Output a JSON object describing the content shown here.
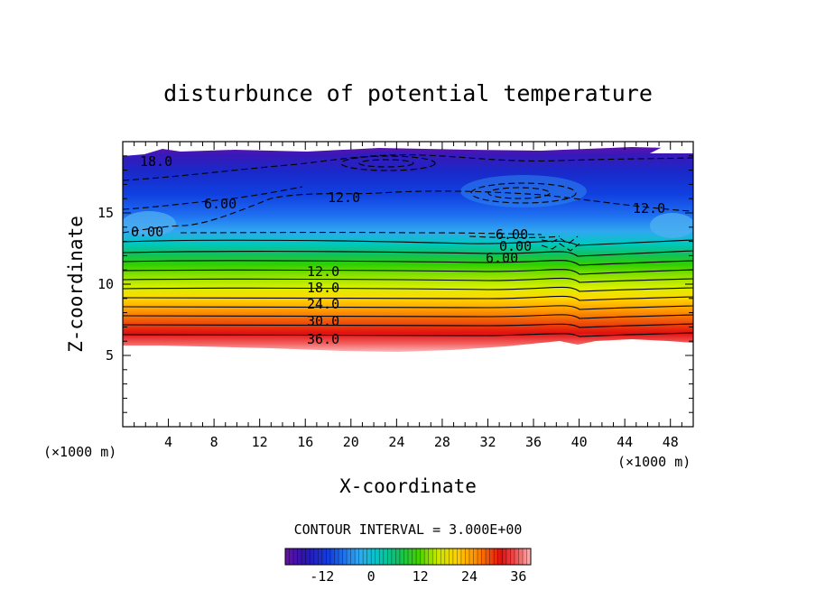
{
  "chart_data": {
    "type": "contour",
    "title": "disturbunce of potential temperature",
    "xlabel": "X-coordinate",
    "ylabel": "Z-coordinate",
    "x_unit": "(×1000 m)",
    "z_unit": "(×1000 m)",
    "xlim": [
      0,
      50
    ],
    "ylim": [
      0,
      20
    ],
    "x_ticks": [
      "4",
      "8",
      "12",
      "16",
      "20",
      "24",
      "28",
      "32",
      "36",
      "40",
      "44",
      "48"
    ],
    "y_ticks": [
      "5",
      "10",
      "15"
    ],
    "contour_interval_label": "CONTOUR INTERVAL = 3.000E+00",
    "colorbar": {
      "min": -21,
      "max": 39,
      "ticks": [
        "-12",
        "0",
        "12",
        "24",
        "36"
      ]
    },
    "contour_labels": [
      "18.0",
      "6.00",
      "12.0",
      "12.0",
      "0.00",
      "6.00",
      "0.00",
      "6.00",
      "12.0",
      "18.0",
      "24.0",
      "30.0",
      "36.0"
    ]
  },
  "colors": {
    "negative_contour": "#000000",
    "background": "#ffffff"
  }
}
